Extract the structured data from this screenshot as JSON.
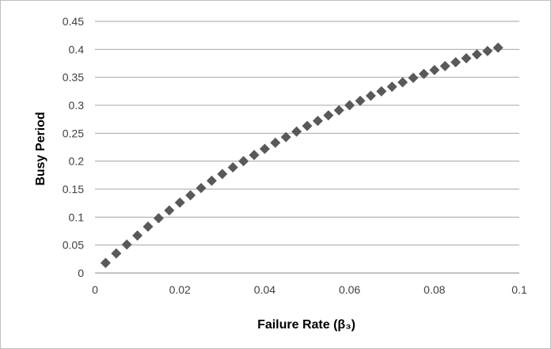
{
  "chart_data": {
    "type": "scatter",
    "title": "",
    "xlabel": "Failure Rate (β₃)",
    "ylabel": "Busy Period",
    "xlim": [
      0,
      0.1
    ],
    "ylim": [
      0,
      0.45
    ],
    "x_ticks": [
      "0",
      "0.02",
      "0.04",
      "0.06",
      "0.08",
      "0.1"
    ],
    "y_ticks": [
      "0",
      "0.05",
      "0.1",
      "0.15",
      "0.2",
      "0.25",
      "0.3",
      "0.35",
      "0.4",
      "0.45"
    ],
    "grid": {
      "horizontal": true,
      "vertical": false
    },
    "legend": "none",
    "marker": "diamond",
    "marker_color": "#595959",
    "gridline_color": "#a6a6a6",
    "series": [
      {
        "x": [
          0.0025,
          0.005,
          0.0075,
          0.01,
          0.0125,
          0.015,
          0.0175,
          0.02,
          0.0225,
          0.025,
          0.0275,
          0.03,
          0.0325,
          0.035,
          0.0375,
          0.04,
          0.0425,
          0.045,
          0.0475,
          0.05,
          0.0525,
          0.055,
          0.0575,
          0.06,
          0.0625,
          0.065,
          0.0675,
          0.07,
          0.0725,
          0.075,
          0.0775,
          0.08,
          0.0825,
          0.085,
          0.0875,
          0.09,
          0.0925,
          0.095
        ],
        "y": [
          0.018,
          0.035,
          0.051,
          0.067,
          0.083,
          0.098,
          0.112,
          0.126,
          0.139,
          0.152,
          0.165,
          0.177,
          0.189,
          0.2,
          0.211,
          0.222,
          0.233,
          0.243,
          0.253,
          0.263,
          0.272,
          0.282,
          0.291,
          0.3,
          0.308,
          0.317,
          0.325,
          0.333,
          0.341,
          0.349,
          0.356,
          0.363,
          0.37,
          0.377,
          0.384,
          0.391,
          0.397,
          0.403
        ]
      }
    ]
  }
}
